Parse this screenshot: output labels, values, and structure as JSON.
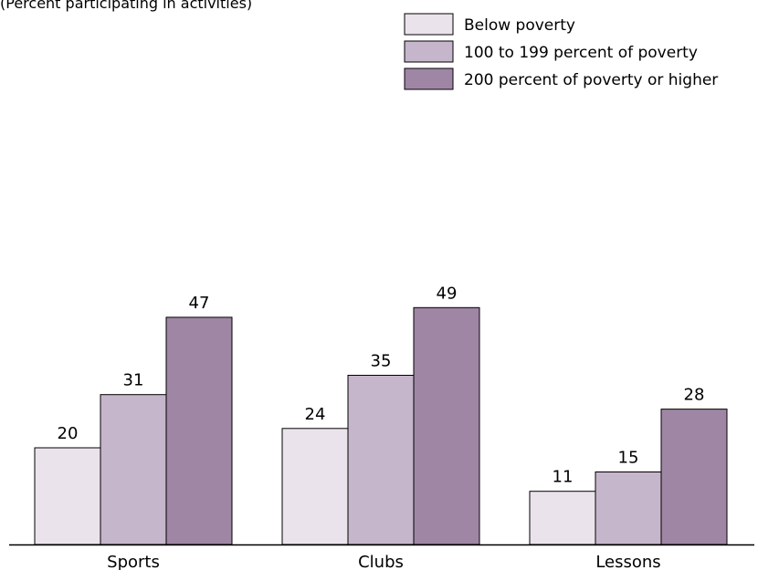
{
  "chart_data": {
    "type": "bar",
    "subtitle": "(Percent participating in activities)",
    "categories": [
      "Sports",
      "Clubs",
      "Lessons"
    ],
    "series": [
      {
        "name": "Below poverty",
        "values": [
          20,
          24,
          11
        ],
        "color": "#ebe3eb"
      },
      {
        "name": "100 to 199 percent of poverty",
        "values": [
          31,
          35,
          15
        ],
        "color": "#c6b6cb"
      },
      {
        "name": "200 percent of poverty or higher",
        "values": [
          47,
          49,
          28
        ],
        "color": "#9f86a5"
      }
    ],
    "grid": false,
    "legend_position": "top-right"
  }
}
